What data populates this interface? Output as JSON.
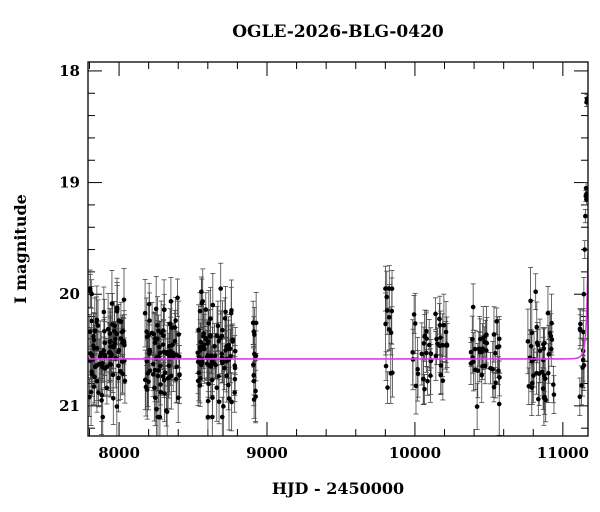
{
  "chart_data": {
    "type": "scatter",
    "title": "OGLE-2026-BLG-0420",
    "xlabel": "HJD - 2450000",
    "ylabel": "I magnitude",
    "xlim": [
      7790,
      11170
    ],
    "ylim": [
      21.27,
      17.92
    ],
    "y_inverted": true,
    "grid": false,
    "x_ticks": [
      8000,
      9000,
      10000,
      11000
    ],
    "x_tick_labels": [
      "8000",
      "9000",
      "10000",
      "11000"
    ],
    "y_ticks": [
      18,
      19,
      20,
      21
    ],
    "y_tick_labels": [
      "18",
      "19",
      "20",
      "21"
    ],
    "colors": {
      "data": "#000000",
      "model": "#e23be6",
      "errorbar": "#444444"
    },
    "series": [
      {
        "kind": "observations",
        "seasons": [
          {
            "x_start": 7800,
            "x_end": 8040,
            "n": 95,
            "mag_mean": 20.55,
            "mag_sd": 0.25,
            "err_lo": 0.12,
            "err_hi": 0.32
          },
          {
            "x_start": 8165,
            "x_end": 8420,
            "n": 85,
            "mag_mean": 20.55,
            "mag_sd": 0.25,
            "err_lo": 0.12,
            "err_hi": 0.32
          },
          {
            "x_start": 8530,
            "x_end": 8790,
            "n": 95,
            "mag_mean": 20.55,
            "mag_sd": 0.25,
            "err_lo": 0.12,
            "err_hi": 0.32
          },
          {
            "x_start": 8900,
            "x_end": 8930,
            "n": 12,
            "mag_mean": 20.55,
            "mag_sd": 0.2,
            "err_lo": 0.12,
            "err_hi": 0.3
          },
          {
            "x_start": 9800,
            "x_end": 9850,
            "n": 14,
            "mag_mean": 20.45,
            "mag_sd": 0.3,
            "err_lo": 0.12,
            "err_hi": 0.3
          },
          {
            "x_start": 9980,
            "x_end": 10220,
            "n": 40,
            "mag_mean": 20.5,
            "mag_sd": 0.22,
            "err_lo": 0.12,
            "err_hi": 0.3
          },
          {
            "x_start": 10370,
            "x_end": 10580,
            "n": 38,
            "mag_mean": 20.55,
            "mag_sd": 0.22,
            "err_lo": 0.12,
            "err_hi": 0.3
          },
          {
            "x_start": 10740,
            "x_end": 10940,
            "n": 40,
            "mag_mean": 20.6,
            "mag_sd": 0.22,
            "err_lo": 0.12,
            "err_hi": 0.3
          },
          {
            "x_start": 11110,
            "x_end": 11145,
            "n": 10,
            "mag_mean": 20.6,
            "mag_sd": 0.2,
            "err_lo": 0.12,
            "err_hi": 0.28
          }
        ],
        "points": [
          {
            "x": 11142,
            "y": 20.0,
            "err": 0.15
          },
          {
            "x": 11148,
            "y": 19.6,
            "err": 0.08
          },
          {
            "x": 11152,
            "y": 19.3,
            "err": 0.06
          },
          {
            "x": 11155,
            "y": 19.12,
            "err": 0.05
          },
          {
            "x": 11157,
            "y": 19.05,
            "err": 0.05
          },
          {
            "x": 11159,
            "y": 19.15,
            "err": 0.05
          },
          {
            "x": 11161,
            "y": 19.1,
            "err": 0.05
          },
          {
            "x": 11160,
            "y": 18.28,
            "err": 0.04
          },
          {
            "x": 11163,
            "y": 18.25,
            "err": 0.04
          }
        ]
      },
      {
        "kind": "model",
        "baseline": 20.58,
        "t0": 11180,
        "u0": 0.015,
        "tE": 22,
        "x_range": [
          7790,
          11170
        ]
      }
    ]
  }
}
